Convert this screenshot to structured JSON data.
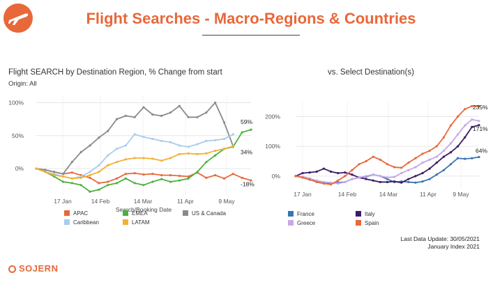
{
  "header": {
    "title": "Flight Searches - Macro-Regions & Countries",
    "logo_icon": "airplane-icon",
    "accent": "#e8683a"
  },
  "left_panel": {
    "title": "Flight SEARCH by Destination Region, % Change from start",
    "subtitle": "Origin: All"
  },
  "right_panel": {
    "title": "vs. Select Destination(s)"
  },
  "footer": {
    "last_update": "Last Data Update:  30/05/2021",
    "index_note": "January Index 2021",
    "brand": "SOJERN"
  },
  "chart_data": [
    {
      "type": "line",
      "title": "Flight SEARCH by Destination Region, % Change from start",
      "xlabel": "Search/Booking Date",
      "ylabel": "",
      "x_tick_labels": [
        "17 Jan",
        "14 Feb",
        "14 Mar",
        "11 Apr",
        "9 May"
      ],
      "y_tick_labels": [
        "100%",
        "50%",
        "0%"
      ],
      "ylim": [
        -40,
        110
      ],
      "grid": true,
      "legend_position": "bottom",
      "end_labels": [
        "59%",
        "34%",
        "-18%"
      ],
      "series": [
        {
          "name": "APAC",
          "color": "#e8683a",
          "values": [
            0,
            -2,
            -5,
            -8,
            -6,
            -10,
            -14,
            -22,
            -20,
            -15,
            -8,
            -7,
            -9,
            -8,
            -10,
            -10,
            -11,
            -12,
            -6,
            -14,
            -10,
            -15,
            -8,
            -14,
            -18
          ]
        },
        {
          "name": "EMEA",
          "color": "#4caf3f",
          "values": [
            0,
            -5,
            -12,
            -20,
            -22,
            -25,
            -35,
            -32,
            -25,
            -22,
            -15,
            -22,
            -25,
            -20,
            -16,
            -20,
            -18,
            -15,
            -5,
            10,
            20,
            30,
            33,
            55,
            59
          ]
        },
        {
          "name": "US & Canada",
          "color": "#8a8a8a",
          "values": [
            0,
            -2,
            -5,
            -8,
            10,
            25,
            35,
            47,
            57,
            75,
            80,
            78,
            93,
            82,
            80,
            85,
            95,
            78,
            78,
            85,
            100,
            70,
            34
          ]
        },
        {
          "name": "Caribbean",
          "color": "#a9cdee",
          "values": [
            0,
            -5,
            -8,
            -12,
            -15,
            -12,
            -5,
            5,
            20,
            30,
            35,
            52,
            48,
            45,
            42,
            40,
            35,
            33,
            37,
            42,
            43,
            45,
            52
          ]
        },
        {
          "name": "LATAM",
          "color": "#f2b134",
          "values": [
            0,
            -5,
            -10,
            -12,
            -15,
            -14,
            -10,
            -5,
            5,
            10,
            14,
            16,
            16,
            15,
            12,
            16,
            22,
            23,
            22,
            23,
            27,
            30,
            34
          ]
        }
      ]
    },
    {
      "type": "line",
      "title": "vs. Select Destination(s)",
      "xlabel": "",
      "ylabel": "",
      "x_tick_labels": [
        "17 Jan",
        "14 Feb",
        "14 Mar",
        "11 Apr",
        "9 May"
      ],
      "y_tick_labels": [
        "200%",
        "100%",
        "0%"
      ],
      "ylim": [
        -40,
        250
      ],
      "grid": true,
      "legend_position": "bottom",
      "end_labels": [
        "235%",
        "171%",
        "64%"
      ],
      "series": [
        {
          "name": "France",
          "color": "#3a73b5",
          "values": [
            0,
            -5,
            -12,
            -18,
            -20,
            -25,
            -22,
            -20,
            -10,
            -5,
            -2,
            5,
            0,
            -10,
            -20,
            -18,
            -20,
            -22,
            -18,
            -10,
            5,
            20,
            40,
            60,
            58,
            60,
            64
          ]
        },
        {
          "name": "Italy",
          "color": "#3d1a66",
          "values": [
            0,
            10,
            12,
            15,
            25,
            15,
            10,
            12,
            5,
            -5,
            -10,
            -15,
            -20,
            -20,
            -18,
            -22,
            -10,
            0,
            10,
            25,
            45,
            65,
            80,
            100,
            130,
            165,
            171
          ]
        },
        {
          "name": "Greece",
          "color": "#c6a8e6",
          "values": [
            0,
            -2,
            -8,
            -15,
            -20,
            -22,
            -25,
            -20,
            -10,
            -5,
            0,
            5,
            0,
            -5,
            -3,
            10,
            20,
            30,
            45,
            55,
            65,
            85,
            110,
            140,
            170,
            190,
            185
          ]
        },
        {
          "name": "Spain",
          "color": "#e8683a",
          "values": [
            0,
            -5,
            -12,
            -20,
            -25,
            -28,
            -15,
            0,
            20,
            40,
            50,
            65,
            55,
            40,
            30,
            28,
            45,
            60,
            75,
            85,
            100,
            130,
            170,
            200,
            225,
            235,
            235
          ]
        }
      ]
    }
  ]
}
